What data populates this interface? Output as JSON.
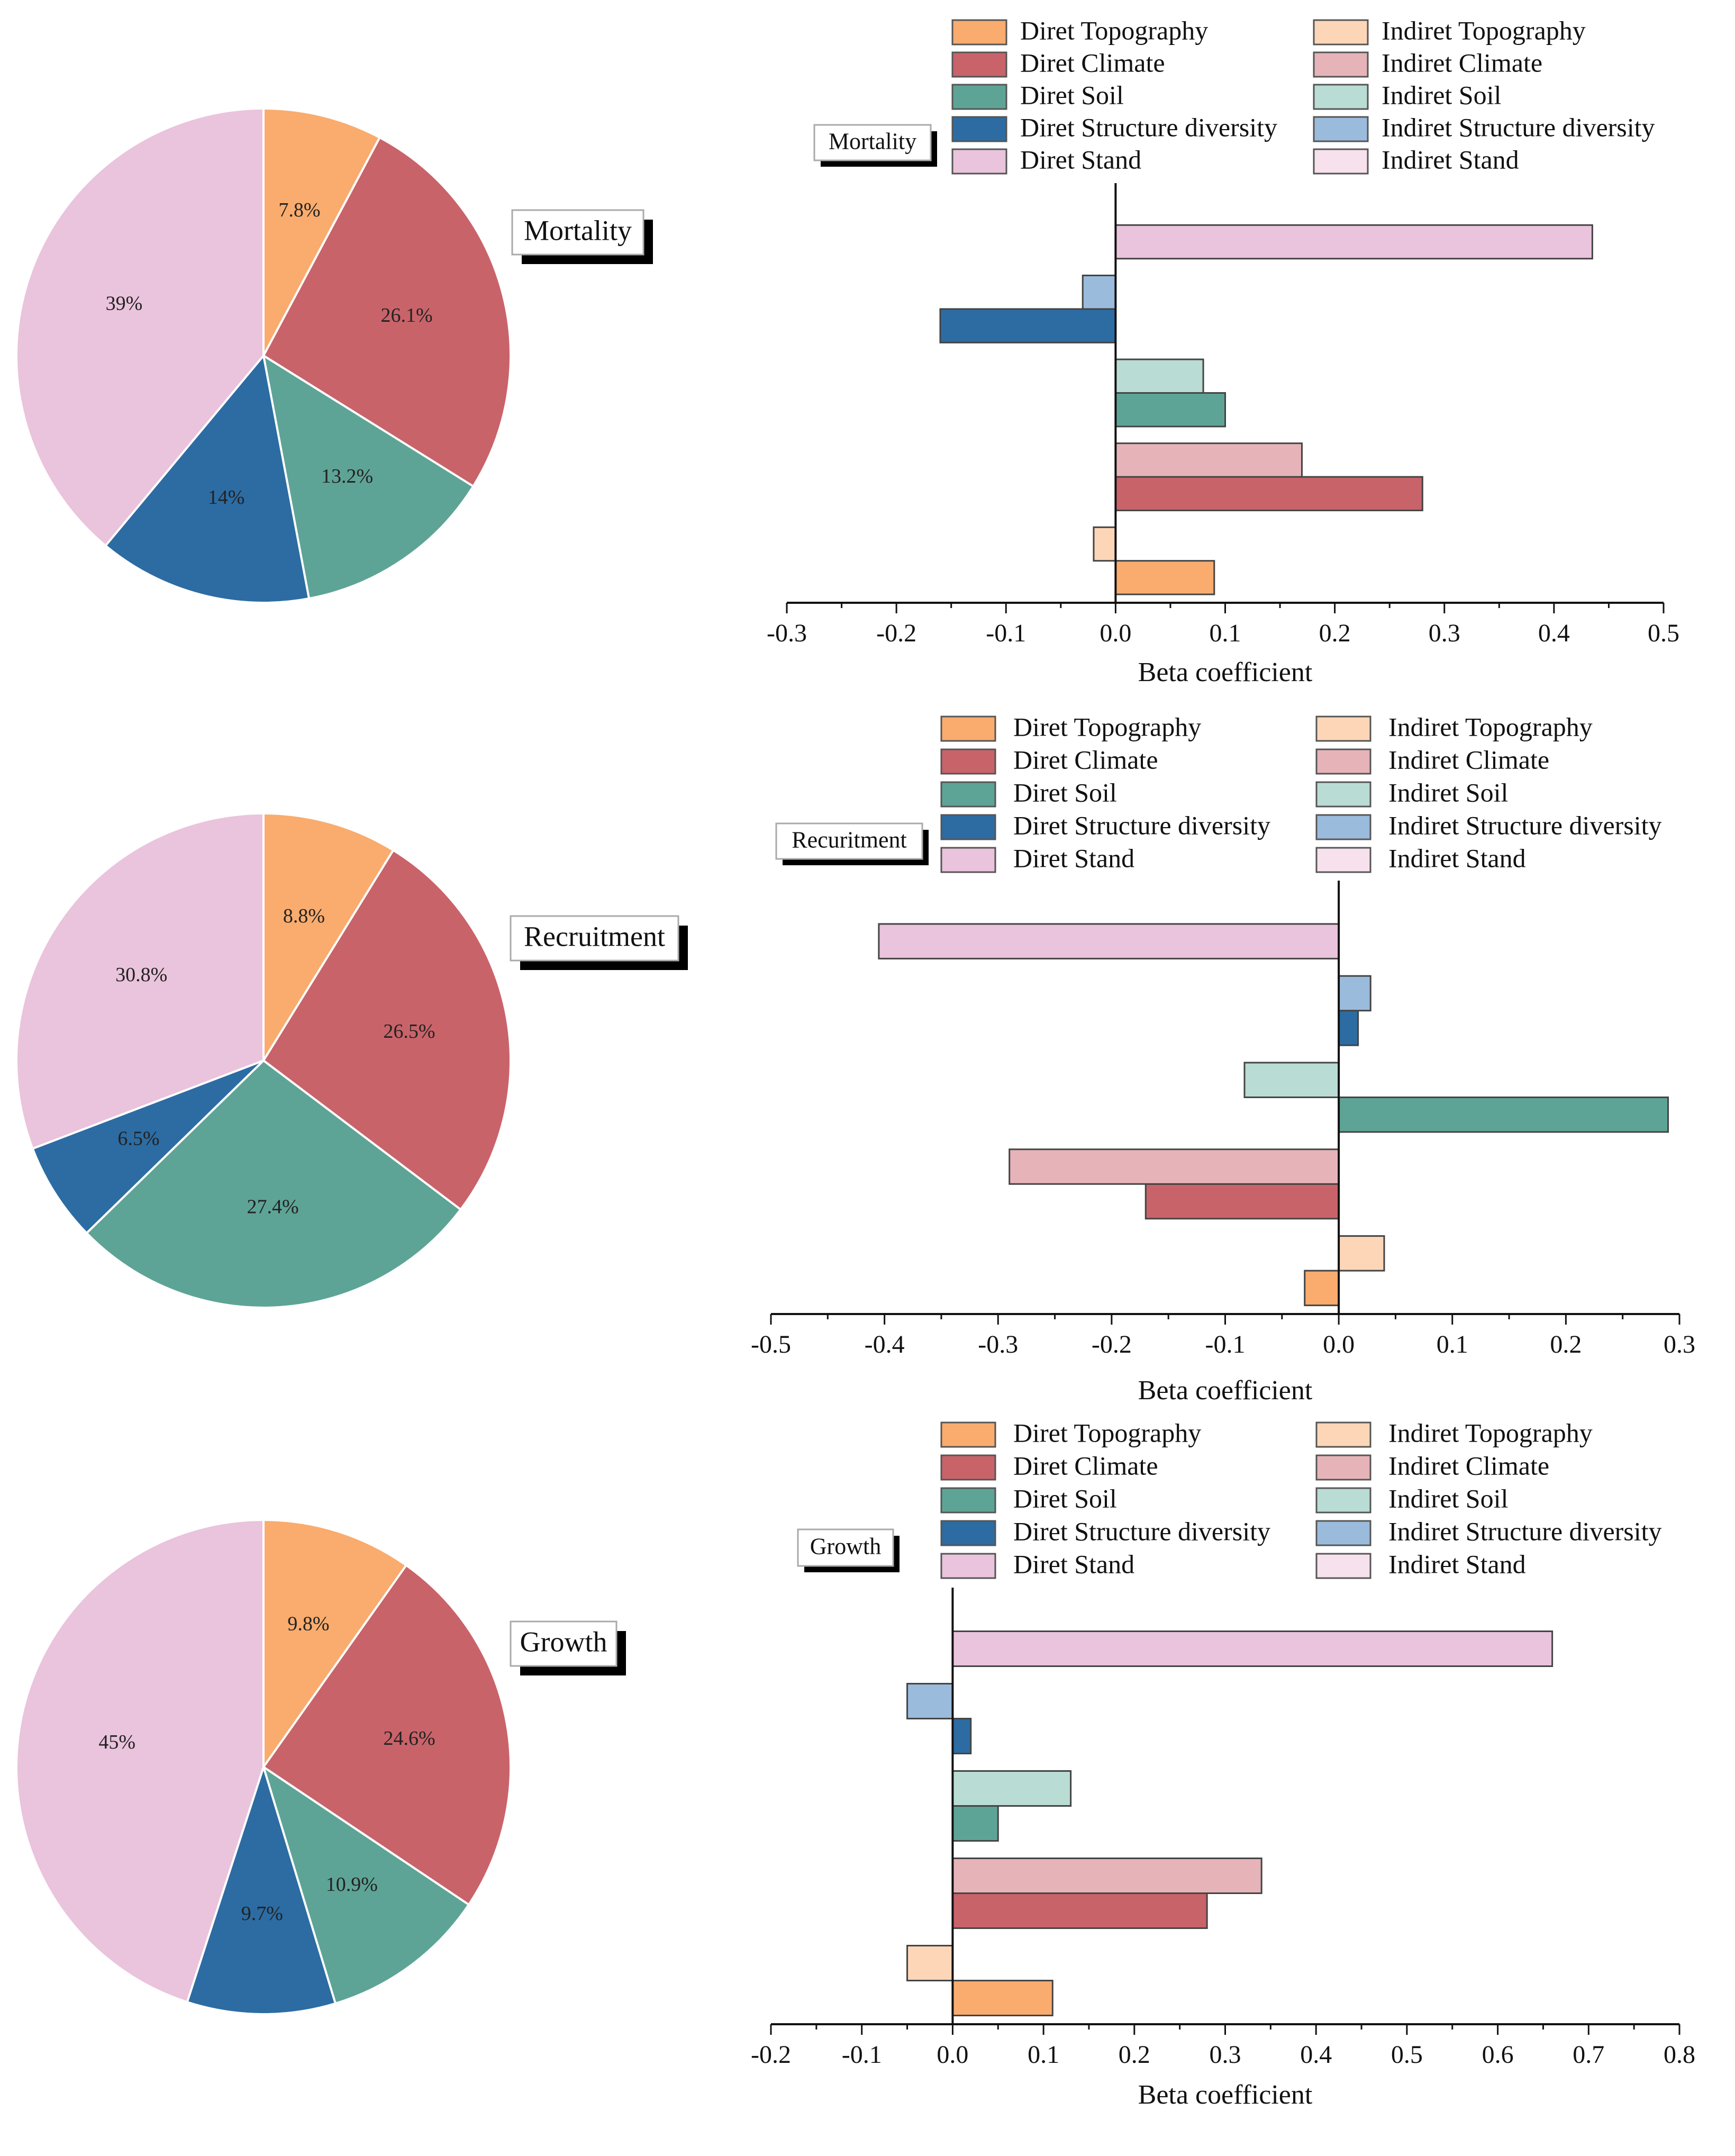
{
  "legend": {
    "direct": [
      "Diret Topography",
      "Diret Climate",
      "Diret Soil",
      "Diret Structure diversity",
      "Diret Stand"
    ],
    "indirect": [
      "Indiret Topography",
      "Indiret Climate",
      "Indiret Soil",
      "Indiret Structure diversity",
      "Indiret Stand"
    ]
  },
  "colors": {
    "direct": [
      "#F9AC6E",
      "#C9636A",
      "#5EA496",
      "#2C6CA3",
      "#EAC3DC"
    ],
    "indirect": [
      "#FDD6B8",
      "#E6B4B8",
      "#B9DCD4",
      "#9BBBDD",
      "#F6E1ED"
    ]
  },
  "chart_data": [
    {
      "type": "pie",
      "title": "Mortality",
      "labels": [
        "Topography",
        "Climate",
        "Soil",
        "Structure diversity",
        "Stand"
      ],
      "values": [
        7.8,
        26.1,
        13.2,
        14,
        39
      ],
      "value_labels": [
        "7.8%",
        "26.1%",
        "13.2%",
        "14%",
        "39%"
      ]
    },
    {
      "type": "bar",
      "title": "Mortality",
      "categories": [
        "Topography",
        "Climate",
        "Soil",
        "Structure diversity",
        "Stand"
      ],
      "series": [
        {
          "name": "Direct",
          "values": [
            0.09,
            0.28,
            0.1,
            -0.16,
            0.435
          ]
        },
        {
          "name": "Indirect",
          "values": [
            -0.02,
            0.17,
            0.08,
            -0.03,
            0
          ]
        }
      ],
      "xlabel": "Beta coefficient",
      "xlim": [
        -0.3,
        0.5
      ],
      "xticks": [
        "-0.3",
        "-0.2",
        "-0.1",
        "0.0",
        "0.1",
        "0.2",
        "0.3",
        "0.4",
        "0.5"
      ]
    },
    {
      "type": "pie",
      "title": "Recruitment",
      "labels": [
        "Topography",
        "Climate",
        "Soil",
        "Structure diversity",
        "Stand"
      ],
      "values": [
        8.8,
        26.5,
        27.4,
        6.5,
        30.8
      ],
      "value_labels": [
        "8.8%",
        "26.5%",
        "27.4%",
        "6.5%",
        "30.8%"
      ]
    },
    {
      "type": "bar",
      "title": "Recuritment",
      "categories": [
        "Topography",
        "Climate",
        "Soil",
        "Structure diversity",
        "Stand"
      ],
      "series": [
        {
          "name": "Direct",
          "values": [
            -0.03,
            -0.17,
            0.29,
            0.017,
            -0.405
          ]
        },
        {
          "name": "Indirect",
          "values": [
            0.04,
            -0.29,
            -0.083,
            0.028,
            0
          ]
        }
      ],
      "xlabel": "Beta coefficient",
      "xlim": [
        -0.5,
        0.3
      ],
      "xticks": [
        "-0.5",
        "-0.4",
        "-0.3",
        "-0.2",
        "-0.1",
        "0.0",
        "0.1",
        "0.2",
        "0.3"
      ]
    },
    {
      "type": "pie",
      "title": "Growth",
      "labels": [
        "Topography",
        "Climate",
        "Soil",
        "Structure diversity",
        "Stand"
      ],
      "values": [
        9.8,
        24.6,
        10.9,
        9.7,
        45
      ],
      "value_labels": [
        "9.8%",
        "24.6%",
        "10.9%",
        "9.7%",
        "45%"
      ]
    },
    {
      "type": "bar",
      "title": "Growth",
      "categories": [
        "Topography",
        "Climate",
        "Soil",
        "Structure diversity",
        "Stand"
      ],
      "series": [
        {
          "name": "Direct",
          "values": [
            0.11,
            0.28,
            0.05,
            0.02,
            0.66
          ]
        },
        {
          "name": "Indirect",
          "values": [
            -0.05,
            0.34,
            0.13,
            -0.05,
            0
          ]
        }
      ],
      "xlabel": "Beta coefficient",
      "xlim": [
        -0.2,
        0.8
      ],
      "xticks": [
        "-0.2",
        "-0.1",
        "0.0",
        "0.1",
        "0.2",
        "0.3",
        "0.4",
        "0.5",
        "0.6",
        "0.7",
        "0.8"
      ]
    }
  ]
}
